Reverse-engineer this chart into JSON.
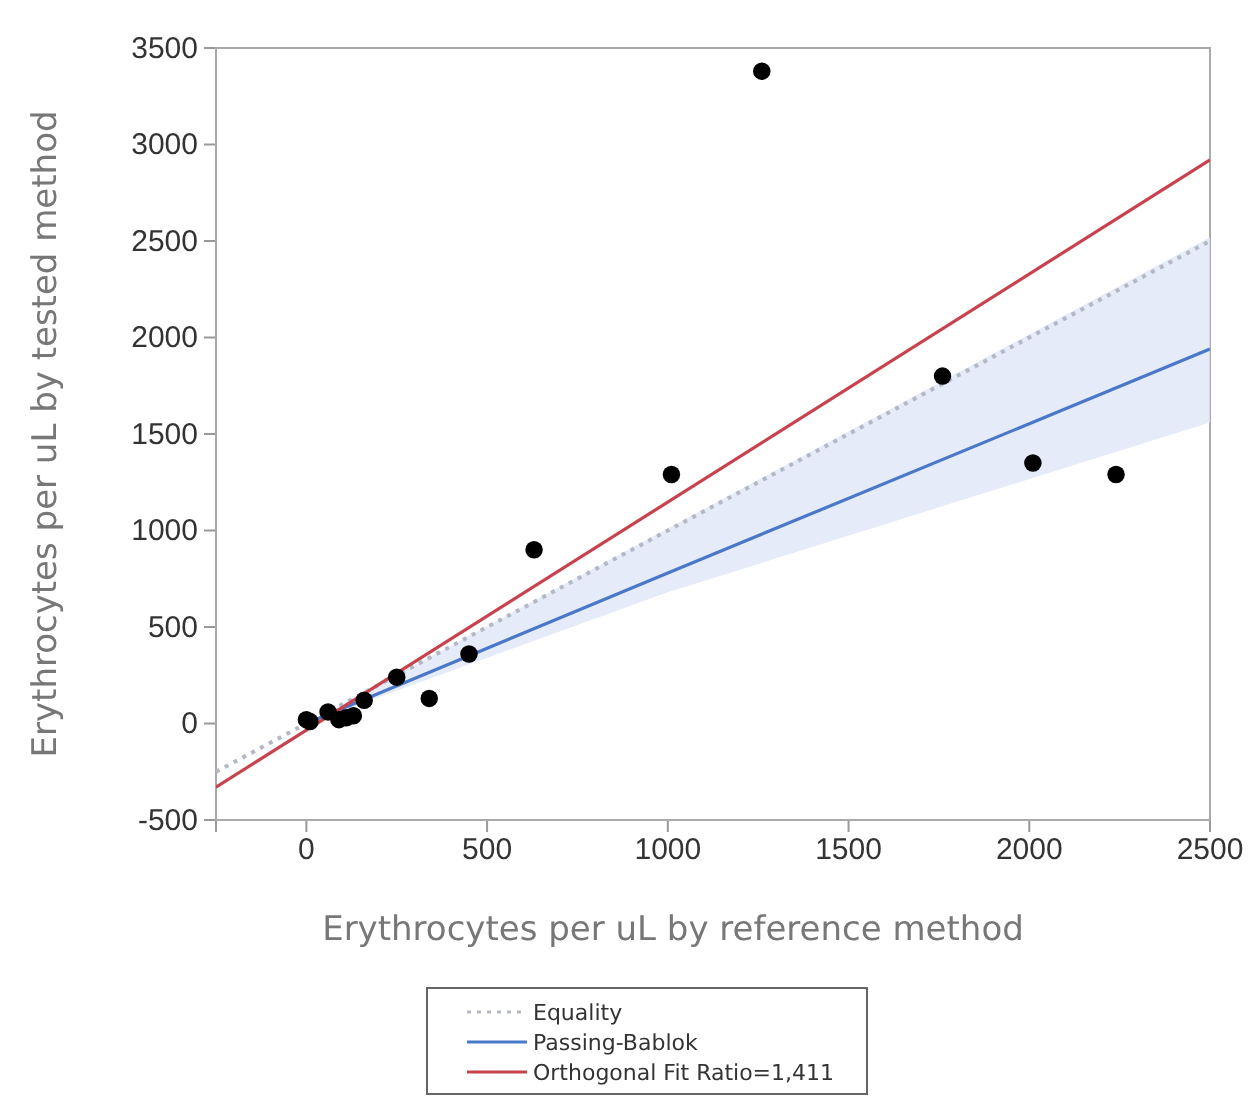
{
  "chart_data": {
    "type": "scatter",
    "xlabel": "Erythrocytes per uL by reference method",
    "ylabel": "Erythrocytes per uL by tested method",
    "xlim": [
      -250,
      2500
    ],
    "xticks": [
      0,
      500,
      1000,
      1500,
      2000,
      2500
    ],
    "ylim": [
      -500,
      3500
    ],
    "yticks": [
      -500,
      0,
      500,
      1000,
      1500,
      2000,
      2500,
      3000,
      3500
    ],
    "grid": false,
    "legend": "bottom",
    "marker": "none",
    "series": [
      {
        "marker": "circle",
        "color": "#000000",
        "x": [
          0,
          10,
          60,
          90,
          110,
          130,
          160,
          250,
          340,
          450,
          630,
          1010,
          1260,
          1760,
          2010,
          2240
        ],
        "values": [
          20,
          10,
          60,
          20,
          30,
          40,
          120,
          240,
          130,
          360,
          900,
          1290,
          3380,
          1800,
          1350,
          1290
        ]
      },
      {
        "type": "line",
        "name": "Equality",
        "color": "#b4b8c4",
        "line_style": "dotted",
        "x": [
          -250,
          2500
        ],
        "values": [
          -250,
          2500
        ]
      },
      {
        "type": "line",
        "name": "Passing-Bablok",
        "color": "#4a78c8",
        "line_style": "solid",
        "x": [
          0,
          1000,
          2500
        ],
        "values": [
          0,
          780,
          1940
        ],
        "lower": [
          0,
          680,
          1560
        ],
        "upper": [
          0,
          1010,
          2520
        ]
      },
      {
        "type": "line",
        "name": "Orthogonal Fit Ratio=1,411",
        "color": "#c8424e",
        "line_style": "solid",
        "x": [
          -250,
          2500
        ],
        "values": [
          -330,
          2920
        ]
      }
    ]
  }
}
